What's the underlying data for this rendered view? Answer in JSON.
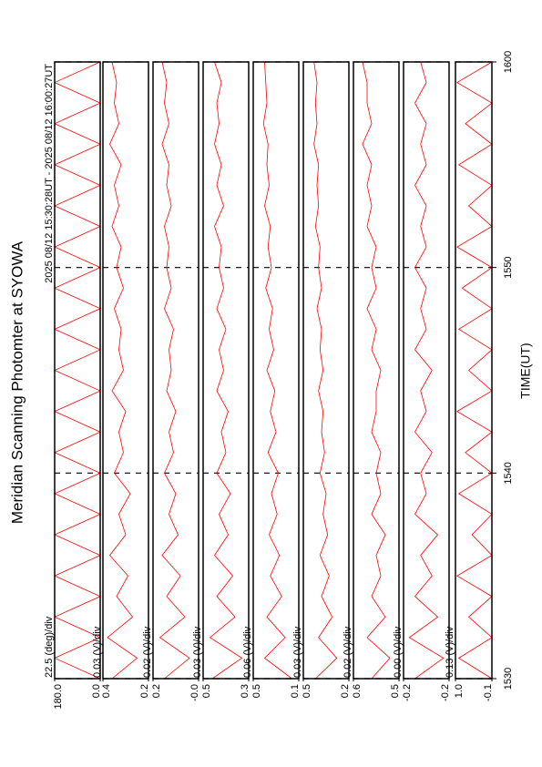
{
  "chart_data": {
    "type": "line",
    "title": "Meridian Scanning Photomter at SYOWA",
    "subtitle": "2025 08/12 15:30:28UT - 2025 08/12 16:00:27UT",
    "xlabel": "TIME(UT)",
    "xlim": [
      930,
      960
    ],
    "xticks": [
      {
        "value": 930,
        "label": "1530"
      },
      {
        "value": 940,
        "label": "1540"
      },
      {
        "value": 950,
        "label": "1550"
      },
      {
        "value": 960,
        "label": "1600"
      }
    ],
    "grid": true,
    "color": "#ff0000",
    "x": [
      930,
      931,
      932,
      933,
      934,
      935,
      936,
      937,
      938,
      939,
      940,
      941,
      942,
      943,
      944,
      945,
      946,
      947,
      948,
      949,
      950,
      951,
      952,
      953,
      954,
      955,
      956,
      957,
      958,
      959,
      960
    ],
    "panels": [
      {
        "scale_label": "22.5 (deg)/div",
        "ylim": [
          0,
          180
        ],
        "yticks": [
          {
            "value": 0,
            "label": "0.0"
          },
          {
            "value": 180,
            "label": "180.0"
          }
        ],
        "values": [
          0,
          180,
          0,
          180,
          0,
          180,
          0,
          180,
          0,
          180,
          0,
          180,
          0,
          180,
          0,
          180,
          0,
          180,
          0,
          180,
          0,
          180,
          0,
          180,
          0,
          180,
          0,
          180,
          0,
          180,
          0
        ]
      },
      {
        "scale_label": "0.03 (V)/div",
        "ylim": [
          0.2,
          0.4
        ],
        "yticks": [
          0.2,
          0.4
        ],
        "values": [
          0.36,
          0.25,
          0.38,
          0.27,
          0.34,
          0.29,
          0.37,
          0.3,
          0.33,
          0.28,
          0.35,
          0.31,
          0.33,
          0.3,
          0.36,
          0.31,
          0.33,
          0.32,
          0.35,
          0.31,
          0.34,
          0.32,
          0.36,
          0.33,
          0.35,
          0.32,
          0.37,
          0.33,
          0.35,
          0.34,
          0.36
        ]
      },
      {
        "scale_label": "0.02 (V)/div",
        "ylim": [
          0,
          0.2
        ],
        "yticks": [
          {
            "value": 0,
            "label": "-0.0"
          },
          0.2
        ],
        "values": [
          0.15,
          0.04,
          0.17,
          0.06,
          0.14,
          0.08,
          0.16,
          0.09,
          0.13,
          0.1,
          0.15,
          0.11,
          0.13,
          0.1,
          0.14,
          0.12,
          0.13,
          0.11,
          0.15,
          0.12,
          0.14,
          0.13,
          0.15,
          0.12,
          0.14,
          0.13,
          0.16,
          0.13,
          0.15,
          0.14,
          0.16
        ]
      },
      {
        "scale_label": "0.03 (V)/div",
        "ylim": [
          0.3,
          0.5
        ],
        "yticks": [
          0.3,
          0.5
        ],
        "values": [
          0.46,
          0.33,
          0.47,
          0.36,
          0.44,
          0.37,
          0.45,
          0.39,
          0.43,
          0.38,
          0.44,
          0.4,
          0.42,
          0.39,
          0.44,
          0.41,
          0.43,
          0.4,
          0.44,
          0.41,
          0.43,
          0.42,
          0.45,
          0.41,
          0.44,
          0.42,
          0.45,
          0.43,
          0.44,
          0.42,
          0.45
        ]
      },
      {
        "scale_label": "0.06 (V)/div",
        "ylim": [
          0.1,
          0.5
        ],
        "yticks": [
          0.1,
          0.5
        ],
        "values": [
          0.16,
          0.4,
          0.22,
          0.38,
          0.25,
          0.35,
          0.27,
          0.36,
          0.29,
          0.34,
          0.28,
          0.37,
          0.3,
          0.35,
          0.31,
          0.38,
          0.32,
          0.36,
          0.33,
          0.39,
          0.34,
          0.37,
          0.35,
          0.4,
          0.36,
          0.38,
          0.37,
          0.41,
          0.38,
          0.39,
          0.4
        ]
      },
      {
        "scale_label": "0.03 (V)/div",
        "ylim": [
          0.2,
          0.5
        ],
        "yticks": [
          0.2,
          0.5
        ],
        "values": [
          0.42,
          0.28,
          0.4,
          0.31,
          0.38,
          0.33,
          0.39,
          0.34,
          0.37,
          0.35,
          0.39,
          0.36,
          0.38,
          0.37,
          0.4,
          0.37,
          0.39,
          0.38,
          0.41,
          0.38,
          0.4,
          0.39,
          0.42,
          0.4,
          0.41,
          0.4,
          0.43,
          0.41,
          0.42,
          0.41,
          0.43
        ]
      },
      {
        "scale_label": "0.02 (V)/div",
        "ylim": [
          0.5,
          0.6
        ],
        "yticks": [
          0.5,
          0.6
        ],
        "values": [
          0.56,
          0.52,
          0.57,
          0.53,
          0.56,
          0.54,
          0.55,
          0.53,
          0.56,
          0.54,
          0.55,
          0.54,
          0.56,
          0.55,
          0.55,
          0.54,
          0.56,
          0.55,
          0.57,
          0.55,
          0.56,
          0.55,
          0.57,
          0.56,
          0.57,
          0.56,
          0.58,
          0.56,
          0.57,
          0.57,
          0.58
        ]
      },
      {
        "scale_label": "0.00 (V)/div",
        "ylim": [
          -0.22,
          -0.18
        ],
        "yticks": [
          {
            "value": -0.22,
            "label": "-0.2"
          },
          {
            "value": -0.18,
            "label": "-0.2"
          }
        ],
        "values": [
          -0.19,
          -0.215,
          -0.185,
          -0.21,
          -0.19,
          -0.205,
          -0.195,
          -0.21,
          -0.19,
          -0.2,
          -0.195,
          -0.205,
          -0.19,
          -0.2,
          -0.195,
          -0.205,
          -0.19,
          -0.2,
          -0.195,
          -0.2,
          -0.19,
          -0.2,
          -0.195,
          -0.2,
          -0.19,
          -0.2,
          -0.195,
          -0.2,
          -0.19,
          -0.2,
          -0.195
        ]
      },
      {
        "scale_label": "0.13 (V)/div",
        "ylim": [
          -0.1,
          1.0
        ],
        "yticks": [
          -0.1,
          {
            "value": 1.0,
            "label": "1.0"
          }
        ],
        "values": [
          -0.1,
          0.9,
          -0.1,
          0.6,
          -0.1,
          0.95,
          -0.1,
          0.5,
          -0.1,
          0.9,
          -0.1,
          0.7,
          -0.1,
          0.95,
          -0.1,
          0.6,
          -0.1,
          0.9,
          -0.1,
          0.8,
          -0.1,
          0.95,
          -0.1,
          0.6,
          -0.1,
          0.9,
          -0.1,
          0.7,
          -0.1,
          0.95,
          -0.1
        ]
      }
    ]
  }
}
